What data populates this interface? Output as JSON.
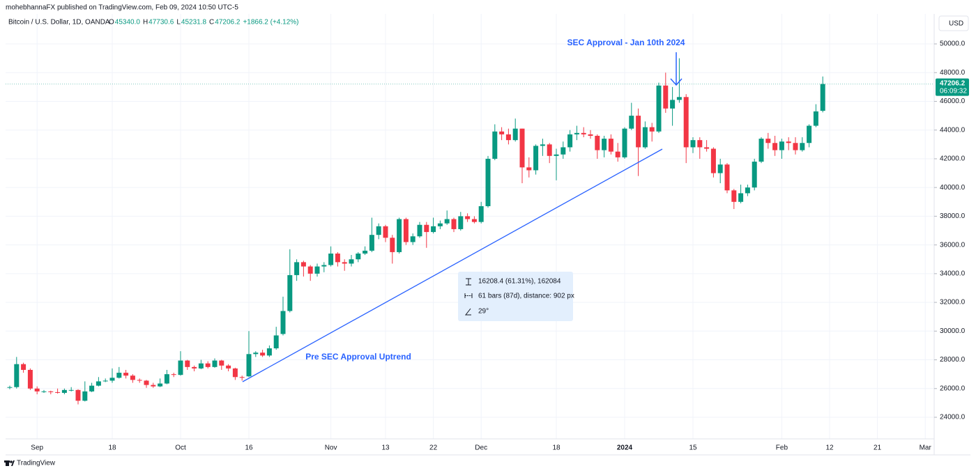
{
  "header": {
    "published": "mohebhannaFX published on TradingView.com, Feb 09, 2024 10:50 UTC-5",
    "symbol": "Bitcoin / U.S. Dollar, 1D, OANDA",
    "ohlc": [
      {
        "key": "O",
        "value": "45340.0"
      },
      {
        "key": "H",
        "value": "47730.6"
      },
      {
        "key": "L",
        "value": "45231.8"
      },
      {
        "key": "C",
        "value": "47206.2"
      }
    ],
    "change": "+1866.2 (+4.12%)",
    "currency": "USD"
  },
  "chart_data": {
    "type": "candlestick",
    "up_color": "#089981",
    "down_color": "#f23645",
    "grid": true,
    "ylim": [
      22496,
      52087
    ],
    "yticks": [
      {
        "value": 24000,
        "label": "24000.0"
      },
      {
        "value": 26000,
        "label": "26000.0"
      },
      {
        "value": 28000,
        "label": "28000.0"
      },
      {
        "value": 30000,
        "label": "30000.0"
      },
      {
        "value": 32000,
        "label": "32000.0"
      },
      {
        "value": 34000,
        "label": "34000.0"
      },
      {
        "value": 36000,
        "label": "36000.0"
      },
      {
        "value": 38000,
        "label": "38000.0"
      },
      {
        "value": 40000,
        "label": "40000.0"
      },
      {
        "value": 42000,
        "label": "42000.0"
      },
      {
        "value": 44000,
        "label": "44000.0"
      },
      {
        "value": 46000,
        "label": "46000.0"
      },
      {
        "value": 48000,
        "label": "48000.0"
      },
      {
        "value": 50000,
        "label": "50000.0"
      }
    ],
    "categories": [
      null,
      null,
      null,
      null,
      "Sep",
      null,
      null,
      null,
      null,
      null,
      null,
      null,
      null,
      null,
      null,
      "18",
      null,
      null,
      null,
      null,
      null,
      null,
      null,
      null,
      null,
      "Oct",
      null,
      null,
      null,
      null,
      null,
      null,
      null,
      null,
      null,
      "16",
      null,
      null,
      null,
      null,
      null,
      null,
      null,
      null,
      null,
      null,
      null,
      "Nov",
      null,
      null,
      null,
      null,
      null,
      null,
      null,
      "13",
      null,
      null,
      null,
      null,
      null,
      null,
      "22",
      null,
      null,
      null,
      null,
      null,
      null,
      "Dec",
      null,
      null,
      null,
      null,
      null,
      null,
      null,
      null,
      null,
      null,
      "18",
      null,
      null,
      null,
      null,
      null,
      null,
      null,
      null,
      null,
      "2024",
      null,
      null,
      null,
      null,
      null,
      null,
      null,
      null,
      null,
      "15",
      null,
      null,
      null,
      null,
      null,
      null,
      null,
      null,
      null,
      null,
      null,
      null,
      "Feb",
      null,
      null,
      null,
      null,
      null,
      null,
      "12",
      null,
      null,
      null,
      null,
      null,
      null,
      "21",
      null,
      null,
      null,
      null,
      null,
      null,
      "Mar"
    ],
    "open": [
      26050,
      26100,
      27700,
      27300,
      26000,
      25800,
      25800,
      25750,
      25700,
      25900,
      25900,
      25150,
      25800,
      26200,
      26500,
      26550,
      26750,
      27100,
      26900,
      26600,
      26550,
      26250,
      26150,
      26350,
      27000,
      26950,
      27950,
      27500,
      27400,
      27750,
      27500,
      27950,
      27600,
      27400,
      26800,
      26850,
      28400,
      28500,
      28300,
      28800,
      29800,
      31400,
      33900,
      34800,
      34500,
      34000,
      34500,
      34600,
      35400,
      34800,
      34700,
      35000,
      35400,
      35600,
      36700,
      37300,
      36500,
      35500,
      37800,
      36200,
      36600,
      37400,
      36900,
      37300,
      37500,
      37800,
      37100,
      38000,
      37800,
      37600,
      38700,
      42000,
      43900,
      43700,
      43300,
      44100,
      41400,
      41200,
      42900,
      43000,
      42200,
      42300,
      42800,
      43700,
      43800,
      43700,
      43600,
      42600,
      43400,
      42500,
      42100,
      44100,
      45000,
      42800,
      44200,
      43900,
      47100,
      45500,
      46100,
      46300,
      42800,
      43300,
      42800,
      42700,
      41000,
      41600,
      39800,
      39000,
      39600,
      40000,
      41800,
      43400,
      43100,
      42600,
      43200,
      43100,
      42600,
      43100,
      44300,
      45340,
      null,
      null,
      null,
      null,
      null,
      null,
      null,
      null,
      null,
      null,
      null,
      null,
      null,
      null,
      null
    ],
    "high": [
      26200,
      28200,
      27800,
      27400,
      26150,
      25900,
      25850,
      26000,
      26000,
      26100,
      25950,
      26500,
      26400,
      26800,
      26700,
      27400,
      27500,
      27300,
      27000,
      26700,
      26600,
      26400,
      26700,
      27300,
      27100,
      28600,
      28000,
      27600,
      28000,
      27900,
      28100,
      28000,
      27700,
      27450,
      26900,
      30000,
      28600,
      28700,
      29000,
      30300,
      32400,
      35700,
      35000,
      34900,
      34600,
      34700,
      34800,
      35900,
      35500,
      35000,
      35300,
      35500,
      35900,
      37900,
      37500,
      37400,
      36700,
      37900,
      37900,
      36800,
      37600,
      37600,
      37900,
      37700,
      38400,
      37900,
      38300,
      38200,
      38000,
      39000,
      42200,
      44400,
      44200,
      44100,
      44800,
      44100,
      42100,
      43000,
      43400,
      43100,
      42700,
      43200,
      44000,
      44300,
      44200,
      44000,
      43700,
      43600,
      43700,
      43100,
      44200,
      45900,
      45500,
      44600,
      44500,
      47300,
      48000,
      47000,
      49000,
      46500,
      43500,
      43500,
      43300,
      42800,
      42000,
      41700,
      39900,
      40200,
      40200,
      42000,
      43500,
      43800,
      43600,
      43400,
      43500,
      43500,
      43500,
      44400,
      45800,
      47730.6,
      null,
      null,
      null,
      null,
      null,
      null,
      null,
      null,
      null,
      null,
      null,
      null,
      null,
      null,
      null
    ],
    "low": [
      25950,
      26000,
      27100,
      25900,
      25600,
      25700,
      25600,
      25650,
      25600,
      25800,
      24900,
      25100,
      25750,
      26150,
      26450,
      26400,
      26700,
      26700,
      26400,
      26400,
      26050,
      26050,
      26100,
      26300,
      26800,
      26900,
      27300,
      27200,
      27350,
      27400,
      27450,
      27300,
      27200,
      26600,
      26550,
      26800,
      28200,
      28200,
      28200,
      28700,
      29700,
      31300,
      33500,
      33800,
      33500,
      33800,
      34100,
      34500,
      34500,
      34200,
      34500,
      34800,
      35300,
      35500,
      36400,
      36200,
      34700,
      35400,
      36000,
      36000,
      36500,
      35800,
      36800,
      37100,
      37400,
      36900,
      37000,
      37600,
      37500,
      37500,
      38600,
      41900,
      43300,
      43000,
      43200,
      40300,
      40700,
      40900,
      42200,
      41700,
      40500,
      42000,
      42500,
      43300,
      43500,
      43400,
      42000,
      42100,
      42300,
      41800,
      42000,
      44000,
      40800,
      42700,
      43200,
      43800,
      45200,
      44300,
      45900,
      41700,
      42400,
      42000,
      42500,
      40700,
      40300,
      39600,
      38500,
      38900,
      39400,
      39800,
      41700,
      42700,
      42200,
      42000,
      42600,
      42300,
      42500,
      42800,
      44200,
      45231.8,
      null,
      null,
      null,
      null,
      null,
      null,
      null,
      null,
      null,
      null,
      null,
      null,
      null,
      null,
      null
    ],
    "close": [
      26100,
      27700,
      27300,
      26000,
      25800,
      25800,
      25750,
      25700,
      25900,
      25900,
      25150,
      25800,
      26200,
      26500,
      26550,
      26750,
      27100,
      26900,
      26600,
      26550,
      26250,
      26150,
      26350,
      27000,
      26950,
      27950,
      27500,
      27400,
      27750,
      27500,
      27950,
      27600,
      27400,
      26800,
      26750,
      28400,
      28500,
      28300,
      28800,
      29700,
      31400,
      33900,
      34800,
      34500,
      34000,
      34500,
      34600,
      35400,
      34800,
      34700,
      35000,
      35400,
      35600,
      36700,
      37300,
      36500,
      35500,
      37800,
      36200,
      36600,
      37400,
      36900,
      37300,
      37500,
      37800,
      37100,
      38000,
      37800,
      37600,
      38700,
      42000,
      43900,
      43700,
      43300,
      44100,
      41400,
      41200,
      42900,
      43000,
      42200,
      42300,
      42800,
      43700,
      43800,
      43700,
      43600,
      42600,
      43400,
      42500,
      42100,
      44100,
      45000,
      42800,
      44200,
      43900,
      47100,
      45500,
      46100,
      46300,
      42800,
      43300,
      42800,
      42700,
      41000,
      41600,
      39800,
      39000,
      39600,
      40000,
      41800,
      43400,
      43100,
      42600,
      43200,
      43100,
      42600,
      43100,
      44300,
      45300,
      47206.2,
      null,
      null,
      null,
      null,
      null,
      null,
      null,
      null,
      null,
      null,
      null,
      null,
      null,
      null,
      null
    ],
    "countdown": "06:09:32",
    "annotations": {
      "sec": "SEC Approval - Jan 10th 2024",
      "trend": "Pre SEC Approval Uptrend"
    },
    "measure": {
      "price": "16208.4 (61.31%), 162084",
      "bars": "61 bars (87d), distance: 902 px",
      "angle": "29°"
    }
  },
  "footer": {
    "brand": "TradingView"
  }
}
